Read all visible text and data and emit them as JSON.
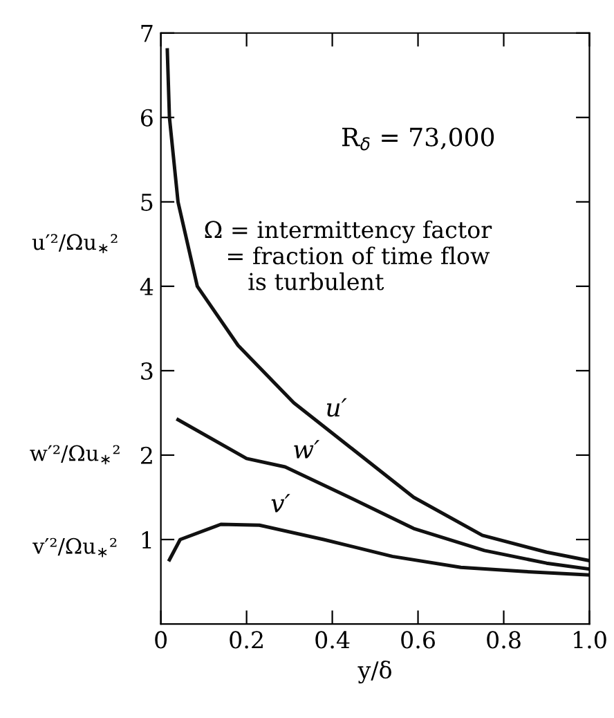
{
  "chart_data": {
    "type": "line",
    "xlabel": "y/δ",
    "ylabel": "u′²/Ωu$_{∗}$²",
    "xlim": [
      0,
      1
    ],
    "ylim": [
      0,
      7
    ],
    "xticks": [
      0,
      0.2,
      0.4,
      0.6,
      0.8,
      {
        "value": 1,
        "label": "1.0"
      }
    ],
    "yticks": [
      1,
      2,
      3,
      4,
      5,
      6,
      7
    ],
    "grid": false,
    "line_style": "solid",
    "marker": "none",
    "series": [
      {
        "name": "u′",
        "color": "#111111",
        "x": [
          0.015,
          0.02,
          0.04,
          0.085,
          0.18,
          0.31,
          0.44,
          0.59,
          0.75,
          0.9,
          1.0
        ],
        "values": [
          6.8,
          6.0,
          5.0,
          4.0,
          3.3,
          2.62,
          2.1,
          1.5,
          1.05,
          0.85,
          0.75
        ]
      },
      {
        "name": "w′",
        "color": "#111111",
        "x": [
          0.04,
          0.2,
          0.29,
          0.44,
          0.59,
          0.755,
          0.9,
          1.0
        ],
        "values": [
          2.42,
          1.96,
          1.86,
          1.5,
          1.13,
          0.87,
          0.72,
          0.65
        ]
      },
      {
        "name": "v′",
        "color": "#111111",
        "x": [
          0.02,
          0.045,
          0.14,
          0.23,
          0.38,
          0.54,
          0.7,
          0.85,
          1.0
        ],
        "values": [
          0.76,
          1.0,
          1.18,
          1.17,
          1.0,
          0.8,
          0.67,
          0.62,
          0.58
        ]
      }
    ],
    "annotations": [
      "R$_{δ}$ = 73,000",
      "Ω = intermittency factor\n   = fraction of time flow\n      is turbulent",
      "w′²/Ωu$_{∗}$²",
      "v′²/Ωu$_{∗}$²"
    ]
  }
}
